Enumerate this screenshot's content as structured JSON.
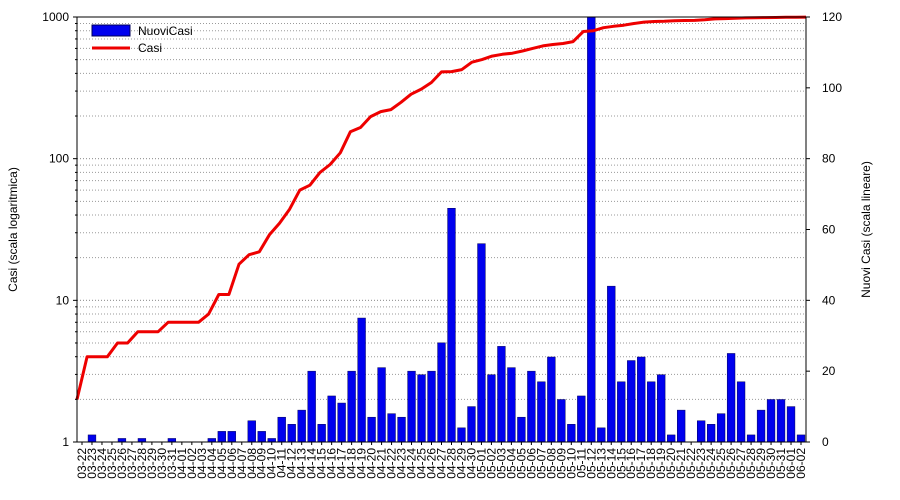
{
  "chart_data": {
    "type": "bar+line",
    "title": "",
    "legend": {
      "placement": "top-left",
      "entries": [
        {
          "name": "NuoviCasi",
          "color": "#0000ee",
          "kind": "bar"
        },
        {
          "name": "Casi",
          "color": "#ee0000",
          "kind": "line"
        }
      ]
    },
    "left_axis": {
      "label": "Casi (scala logaritmica)",
      "scale": "log",
      "range": [
        1,
        1000
      ],
      "ticks": [
        1,
        10,
        100,
        1000
      ],
      "tick_labels": [
        "1",
        "10",
        "100",
        "1000"
      ]
    },
    "right_axis": {
      "label": "Nuovi Casi (scala lineare)",
      "scale": "linear",
      "range": [
        0,
        120
      ],
      "ticks": [
        0,
        20,
        40,
        60,
        80,
        100,
        120
      ],
      "tick_labels": [
        "0",
        "20",
        "40",
        "60",
        "80",
        "100",
        "120"
      ]
    },
    "grid": "horizontal dotted",
    "categories": [
      "03-22",
      "03-23",
      "03-24",
      "03-25",
      "03-26",
      "03-27",
      "03-28",
      "03-29",
      "03-30",
      "03-31",
      "04-01",
      "04-02",
      "04-03",
      "04-04",
      "04-05",
      "04-06",
      "04-07",
      "04-08",
      "04-09",
      "04-10",
      "04-11",
      "04-12",
      "04-13",
      "04-14",
      "04-15",
      "04-16",
      "04-17",
      "04-18",
      "04-19",
      "04-20",
      "04-21",
      "04-22",
      "04-23",
      "04-24",
      "04-25",
      "04-26",
      "04-27",
      "04-28",
      "04-29",
      "04-30",
      "05-01",
      "05-02",
      "05-03",
      "05-04",
      "05-05",
      "05-06",
      "05-07",
      "05-08",
      "05-09",
      "05-10",
      "05-11",
      "05-12",
      "05-13",
      "05-14",
      "05-15",
      "05-16",
      "05-17",
      "05-18",
      "05-19",
      "05-20",
      "05-21",
      "05-22",
      "05-23",
      "05-24",
      "05-25",
      "05-26",
      "05-27",
      "05-28",
      "05-29",
      "05-30",
      "05-31",
      "06-01",
      "06-02"
    ],
    "series": [
      {
        "name": "NuoviCasi",
        "axis": "right",
        "type": "bar",
        "values": [
          0,
          2,
          0,
          0,
          1,
          0,
          1,
          0,
          0,
          1,
          0,
          0,
          0,
          1,
          3,
          3,
          0,
          6,
          3,
          1,
          7,
          5,
          9,
          20,
          5,
          13,
          11,
          20,
          35,
          7,
          21,
          8,
          7,
          20,
          19,
          20,
          28,
          66,
          4,
          10,
          56,
          19,
          27,
          21,
          7,
          20,
          17,
          24,
          12,
          5,
          13,
          120,
          4,
          44,
          17,
          23,
          24,
          17,
          19,
          2,
          9,
          0,
          6,
          5,
          8,
          25,
          17,
          2,
          9,
          12,
          12,
          10,
          2
        ]
      },
      {
        "name": "Casi",
        "axis": "left",
        "type": "line",
        "values": [
          2,
          4,
          4,
          4,
          5,
          5,
          6,
          6,
          6,
          7,
          7,
          7,
          7,
          8,
          11,
          11,
          18,
          21,
          22,
          29,
          35,
          44,
          60,
          65,
          80,
          91,
          110,
          155,
          166,
          198,
          215,
          222,
          250,
          285,
          310,
          345,
          410,
          412,
          425,
          480,
          500,
          530,
          545,
          555,
          575,
          600,
          625,
          640,
          650,
          670,
          790,
          800,
          840,
          860,
          875,
          900,
          920,
          930,
          932,
          940,
          945,
          947,
          955,
          970,
          975,
          980,
          985,
          988,
          990,
          992,
          995,
          996,
          998
        ]
      }
    ]
  }
}
